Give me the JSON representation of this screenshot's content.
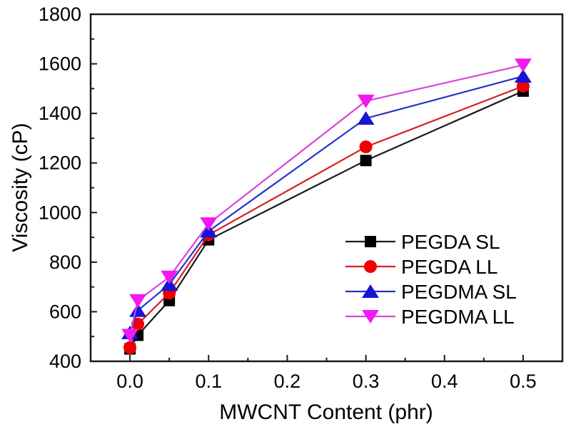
{
  "chart_data": {
    "type": "line",
    "title": "",
    "xlabel": "MWCNT Content (phr)",
    "ylabel": "Viscosity (cP)",
    "x": [
      0.0,
      0.01,
      0.05,
      0.1,
      0.3,
      0.5
    ],
    "xlim": [
      -0.05,
      0.55
    ],
    "ylim": [
      400,
      1800
    ],
    "x_major_ticks": [
      0.0,
      0.1,
      0.2,
      0.3,
      0.4,
      0.5
    ],
    "x_tick_labels": [
      "0.0",
      "0.1",
      "0.2",
      "0.3",
      "0.4",
      "0.5"
    ],
    "x_minor_ticks": [
      0.05,
      0.15,
      0.25,
      0.35,
      0.45
    ],
    "y_major_ticks": [
      400,
      600,
      800,
      1000,
      1200,
      1400,
      1600,
      1800
    ],
    "y_tick_labels": [
      "400",
      "600",
      "800",
      "1000",
      "1200",
      "1400",
      "1600",
      "1800"
    ],
    "y_minor_ticks": [
      500,
      700,
      900,
      1100,
      1300,
      1500,
      1700
    ],
    "grid": false,
    "tick_direction": "in",
    "legend_position": "inside-right",
    "frame_color": "#1a1a1a",
    "background_color": "#ffffff",
    "series": [
      {
        "name": "PEGDA SL",
        "marker": "square",
        "line_color": "#1a1a1a",
        "marker_color": "#000000",
        "values": [
          450,
          505,
          645,
          890,
          1210,
          1490
        ]
      },
      {
        "name": "PEGDA LL",
        "marker": "circle",
        "line_color": "#d42020",
        "marker_color": "#ee0000",
        "values": [
          455,
          550,
          675,
          910,
          1265,
          1510
        ]
      },
      {
        "name": "PEGDMA SL",
        "marker": "triangle-up",
        "line_color": "#2233cc",
        "marker_color": "#1515d6",
        "values": [
          515,
          605,
          710,
          925,
          1380,
          1550
        ]
      },
      {
        "name": "PEGDMA LL",
        "marker": "triangle-down",
        "line_color": "#d845d8",
        "marker_color": "#f318f3",
        "values": [
          505,
          645,
          740,
          955,
          1450,
          1595
        ]
      }
    ]
  }
}
